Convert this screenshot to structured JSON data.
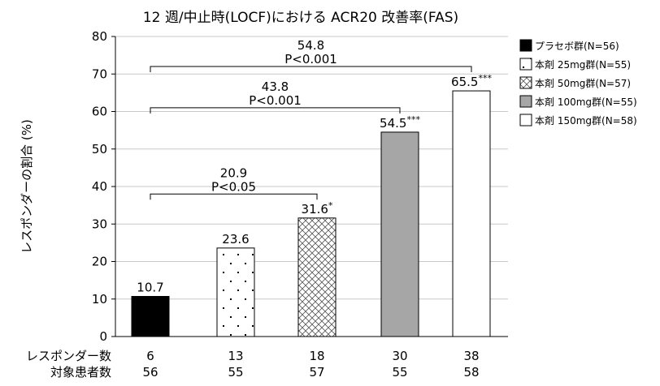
{
  "chart_data": {
    "type": "bar",
    "title": "12 週/中止時(LOCF)における ACR20 改善率(FAS)",
    "ylabel": "レスポンダーの割合 (%)",
    "ylim": [
      0,
      80
    ],
    "yticks": [
      0,
      10,
      20,
      30,
      40,
      50,
      60,
      70,
      80
    ],
    "grid": true,
    "legend_position": "right",
    "series": [
      {
        "name": "プラセボ群(N=56)",
        "value": 10.7,
        "label": "10.7",
        "sig": "",
        "pattern": "solid",
        "color": "#000000"
      },
      {
        "name": "本剤 25mg群(N=55)",
        "value": 23.6,
        "label": "23.6",
        "sig": "",
        "pattern": "dots",
        "color": "#ffffff"
      },
      {
        "name": "本剤 50mg群(N=57)",
        "value": 31.6,
        "label": "31.6",
        "sig": "*",
        "pattern": "crosshatch",
        "color": "#ffffff"
      },
      {
        "name": "本剤 100mg群(N=55)",
        "value": 54.5,
        "label": "54.5",
        "sig": "***",
        "pattern": "solid",
        "color": "#a6a6a6"
      },
      {
        "name": "本剤 150mg群(N=58)",
        "value": 65.5,
        "label": "65.5",
        "sig": "***",
        "pattern": "solid",
        "color": "#ffffff"
      }
    ],
    "comparisons": [
      {
        "from": 0,
        "to": 2,
        "level": 38,
        "diff": "20.9",
        "p": "P<0.05"
      },
      {
        "from": 0,
        "to": 3,
        "level": 61,
        "diff": "43.8",
        "p": "P<0.001"
      },
      {
        "from": 0,
        "to": 4,
        "level": 72,
        "diff": "54.8",
        "p": "P<0.001"
      }
    ],
    "table": {
      "rows": [
        {
          "label": "レスポンダー数",
          "values": [
            "6",
            "13",
            "18",
            "30",
            "38"
          ]
        },
        {
          "label": "対象患者数",
          "values": [
            "56",
            "55",
            "57",
            "55",
            "58"
          ]
        }
      ]
    }
  }
}
